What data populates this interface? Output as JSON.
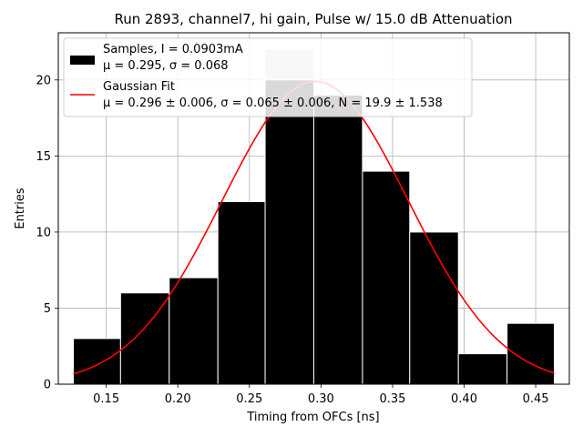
{
  "chart_data": {
    "type": "bar",
    "title": "Run 2893, channel7, hi gain, Pulse w/ 15.0 dB Attenuation",
    "xlabel": "Timing from OFCs [ns]",
    "ylabel": "Entries",
    "xlim": [
      0.1165,
      0.4735
    ],
    "ylim": [
      0,
      23.1
    ],
    "xticks": [
      "0.15",
      "0.20",
      "0.25",
      "0.30",
      "0.35",
      "0.40",
      "0.45"
    ],
    "yticks": [
      "0",
      "5",
      "10",
      "15",
      "20"
    ],
    "grid": true,
    "legend_position": "top-left",
    "bins": [
      {
        "low": 0.127,
        "high": 0.16,
        "count": 3
      },
      {
        "low": 0.16,
        "high": 0.194,
        "count": 6
      },
      {
        "low": 0.194,
        "high": 0.228,
        "count": 7
      },
      {
        "low": 0.228,
        "high": 0.261,
        "count": 12
      },
      {
        "low": 0.261,
        "high": 0.295,
        "count": 22
      },
      {
        "low": 0.295,
        "high": 0.329,
        "count": 19
      },
      {
        "low": 0.329,
        "high": 0.362,
        "count": 14
      },
      {
        "low": 0.362,
        "high": 0.396,
        "count": 10
      },
      {
        "low": 0.396,
        "high": 0.43,
        "count": 2
      },
      {
        "low": 0.43,
        "high": 0.463,
        "count": 4
      }
    ],
    "fit": {
      "mu": 0.296,
      "sigma": 0.065,
      "N": 19.9,
      "x_range": [
        0.127,
        0.463
      ]
    },
    "series": [
      {
        "name_lines": [
          "Samples, I = 0.0903mA",
          "μ = 0.295, σ = 0.068"
        ],
        "color": "#000000",
        "type": "histogram"
      },
      {
        "name_lines": [
          "Gaussian Fit",
          "μ = 0.296 ± 0.006, σ = 0.065 ± 0.006, N = 19.9 ± 1.538"
        ],
        "color": "#ff0000",
        "type": "line"
      }
    ],
    "overflow_bar_color": "#cccccc"
  }
}
